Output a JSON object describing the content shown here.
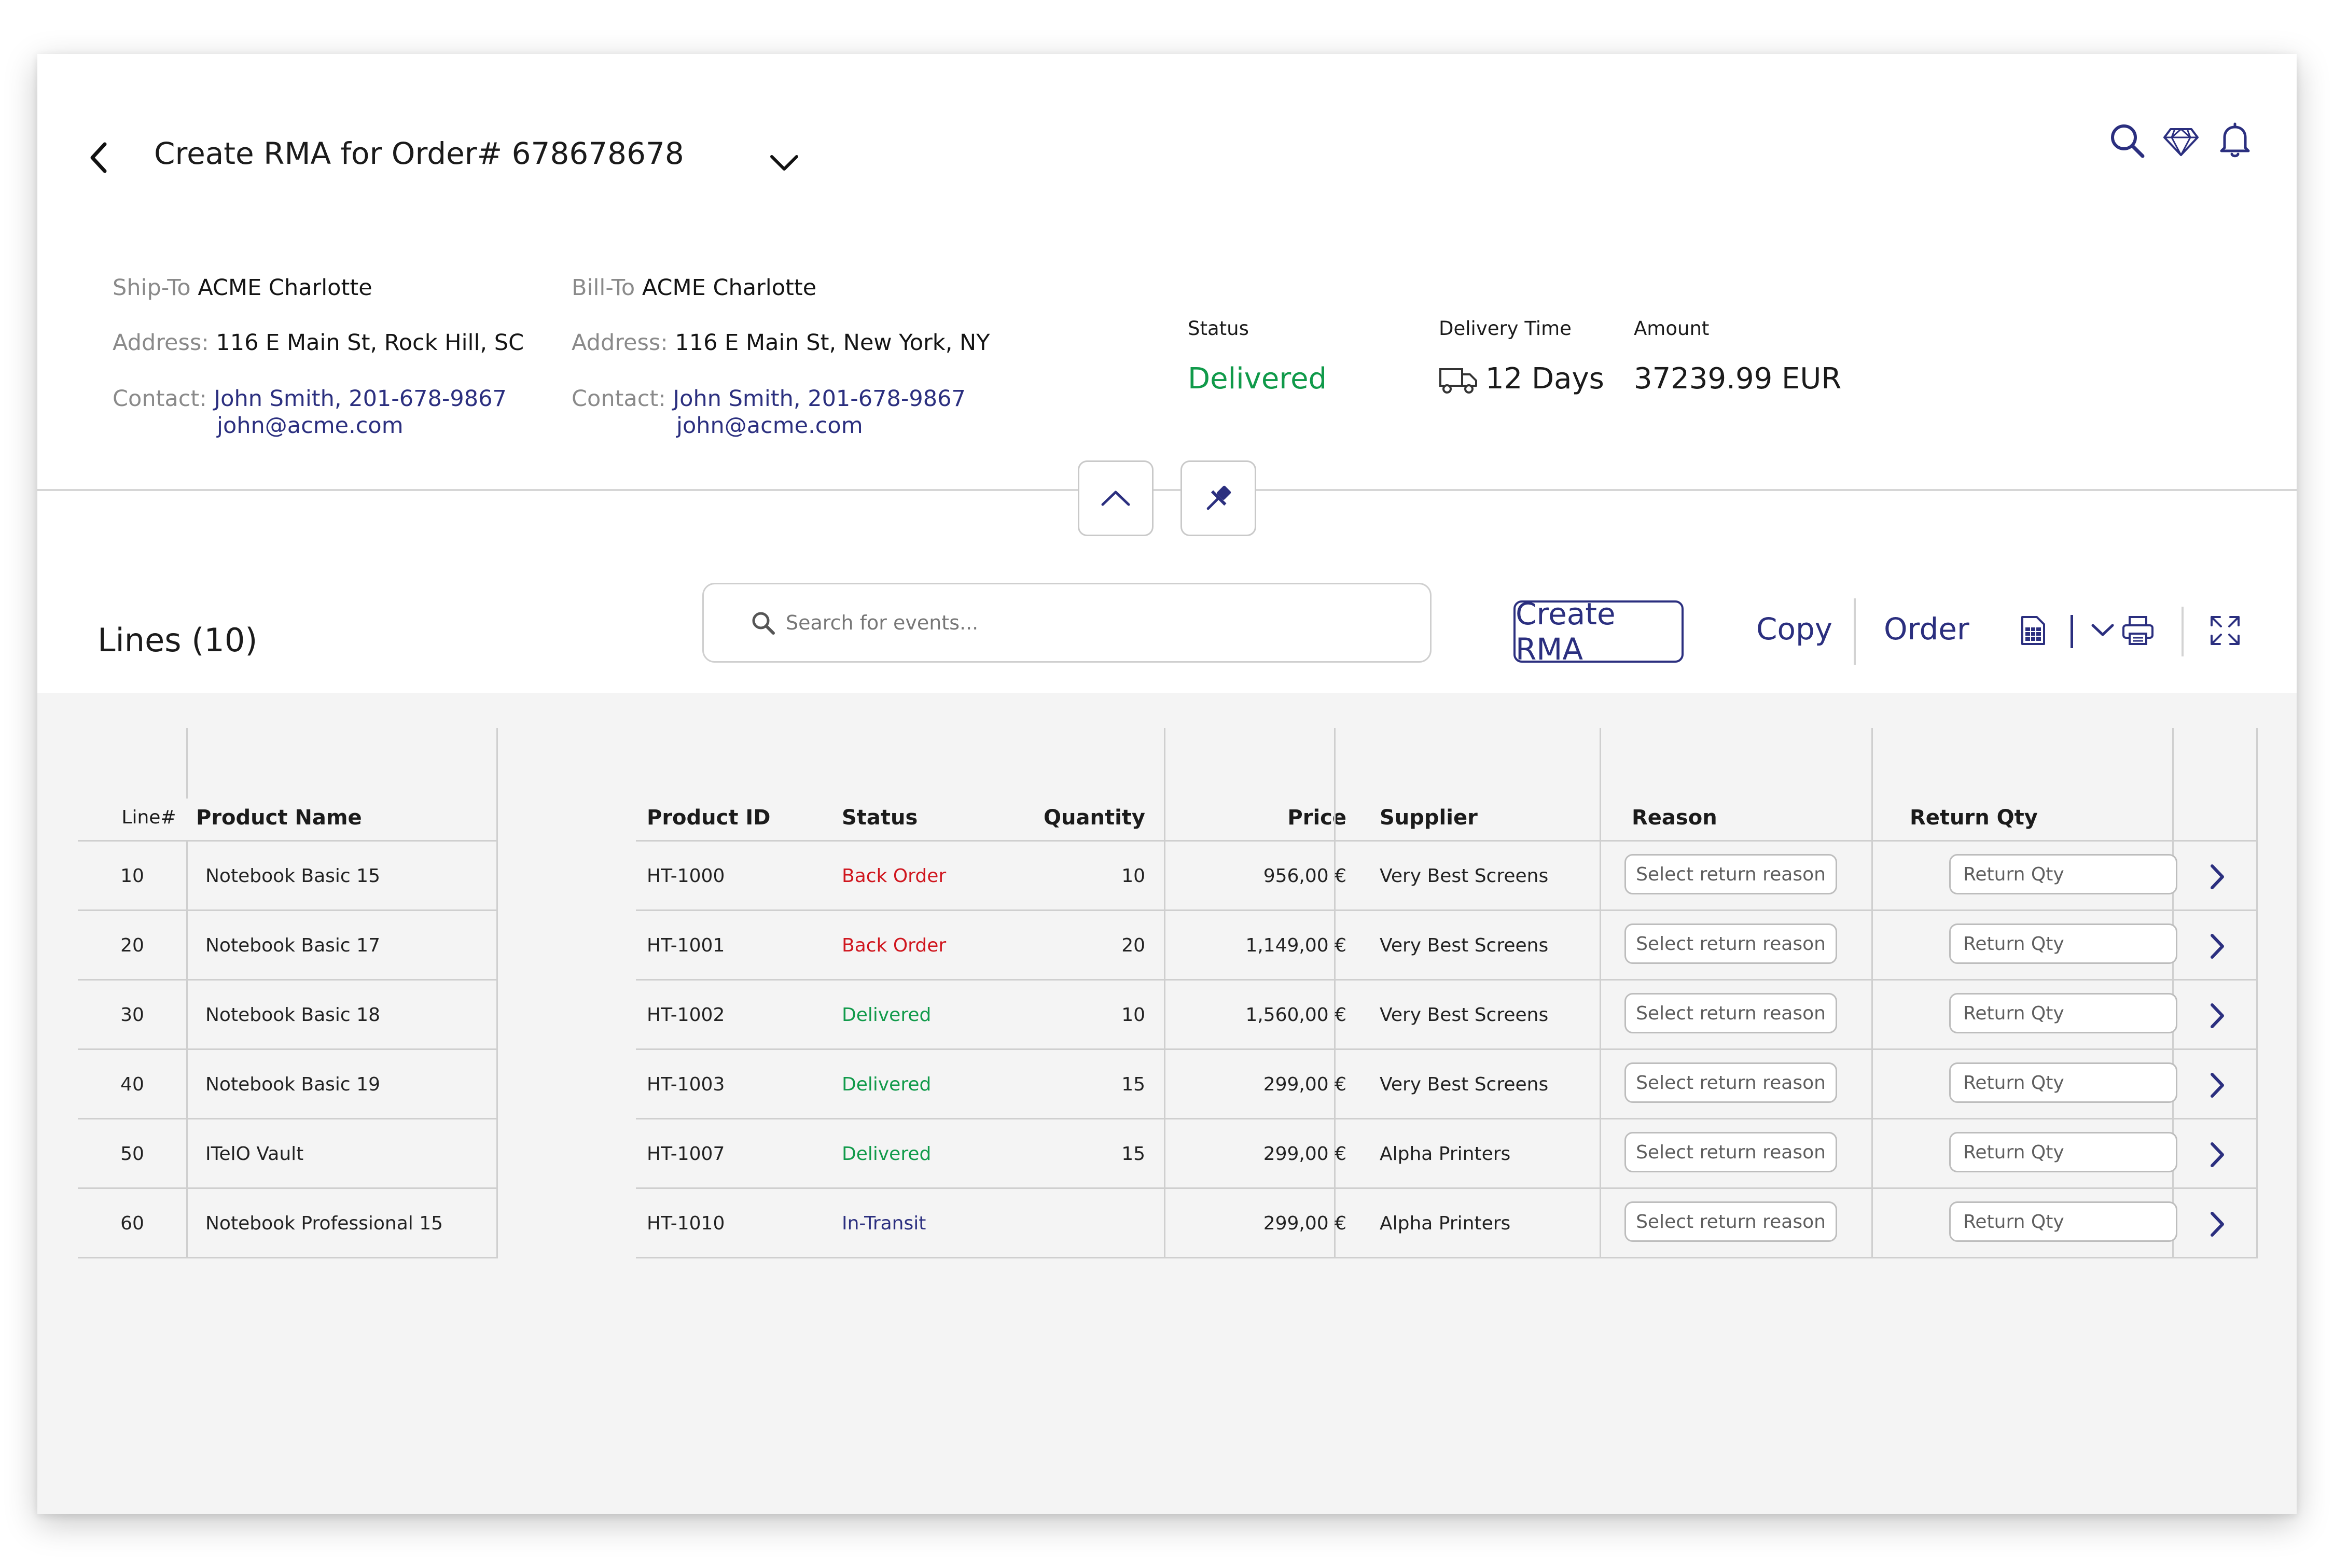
{
  "header": {
    "title": "Create RMA for Order# 678678678",
    "icons": [
      "search-icon",
      "diamond-icon",
      "bell-icon"
    ]
  },
  "ship_to": {
    "label": "Ship-To",
    "name": "ACME Charlotte",
    "address_label": "Address:",
    "address": "116 E Main St, Rock Hill, SC",
    "contact_label": "Contact:",
    "contact": "John Smith, 201-678-9867",
    "email": "john@acme.com"
  },
  "bill_to": {
    "label": "Bill-To",
    "name": "ACME Charlotte",
    "address_label": "Address:",
    "address": "116 E Main St, New York, NY",
    "contact_label": "Contact:",
    "contact": "John Smith, 201-678-9867",
    "email": "john@acme.com"
  },
  "summary": {
    "status_label": "Status",
    "status": "Delivered",
    "delivery_label": "Delivery Time",
    "delivery": "12 Days",
    "amount_label": "Amount",
    "amount": "37239.99 EUR"
  },
  "toolbar": {
    "lines_title": "Lines (10)",
    "search_placeholder": "Search for events...",
    "create_rma": "Create RMA",
    "copy": "Copy",
    "order": "Order"
  },
  "left_table": {
    "headers": {
      "line": "Line#",
      "product": "Product Name"
    },
    "rows": [
      {
        "line": "10",
        "product": "Notebook Basic 15"
      },
      {
        "line": "20",
        "product": "Notebook Basic 17"
      },
      {
        "line": "30",
        "product": "Notebook Basic 18"
      },
      {
        "line": "40",
        "product": "Notebook Basic 19"
      },
      {
        "line": "50",
        "product": "ITelO Vault"
      },
      {
        "line": "60",
        "product": "Notebook Professional 15"
      }
    ]
  },
  "right_table": {
    "headers": {
      "product_id": "Product ID",
      "status": "Status",
      "quantity": "Quantity",
      "price": "Price",
      "supplier": "Supplier",
      "reason": "Reason",
      "return_qty": "Return Qty"
    },
    "rows": [
      {
        "product_id": "HT-1000",
        "status": "Back Order",
        "status_type": "red",
        "quantity": "10",
        "price": "956,00 €",
        "supplier": "Very Best Screens",
        "reason_placeholder": "Select return reason",
        "return_qty_placeholder": "Return Qty"
      },
      {
        "product_id": "HT-1001",
        "status": "Back Order",
        "status_type": "red",
        "quantity": "20",
        "price": "1,149,00 €",
        "supplier": "Very Best Screens",
        "reason_placeholder": "Select return reason",
        "return_qty_placeholder": "Return Qty"
      },
      {
        "product_id": "HT-1002",
        "status": "Delivered",
        "status_type": "green",
        "quantity": "10",
        "price": "1,560,00 €",
        "supplier": "Very Best Screens",
        "reason_placeholder": "Select return reason",
        "return_qty_placeholder": "Return Qty"
      },
      {
        "product_id": "HT-1003",
        "status": "Delivered",
        "status_type": "green",
        "quantity": "15",
        "price": "299,00 €",
        "supplier": "Very Best Screens",
        "reason_placeholder": "Select return reason",
        "return_qty_placeholder": "Return Qty"
      },
      {
        "product_id": "HT-1007",
        "status": "Delivered",
        "status_type": "green",
        "quantity": "15",
        "price": "299,00 €",
        "supplier": "Alpha Printers",
        "reason_placeholder": "Select return reason",
        "return_qty_placeholder": "Return Qty"
      },
      {
        "product_id": "HT-1010",
        "status": "In-Transit",
        "status_type": "blue",
        "quantity": "",
        "price": "299,00 €",
        "supplier": "Alpha Printers",
        "reason_placeholder": "Select return reason",
        "return_qty_placeholder": "Return Qty"
      }
    ]
  },
  "colors": {
    "accent": "#2b2f7f",
    "delivered": "#109a4a",
    "back_order": "#d0161e"
  }
}
